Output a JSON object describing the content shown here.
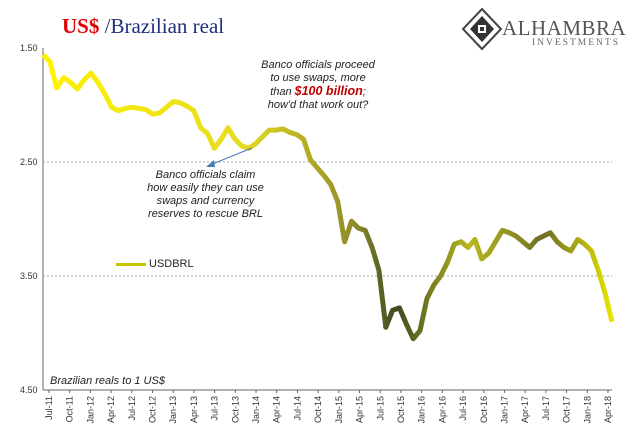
{
  "title": {
    "currency": "US$",
    "rest": " /Brazilian real"
  },
  "logo": {
    "name": "ALHAMBRA",
    "sub": "INVESTMENTS"
  },
  "annotations": {
    "swaps_line1": "Banco officials proceed",
    "swaps_line2": "to use swaps, more",
    "swaps_line3_pre": "than ",
    "swaps_highlight": "$100 billion",
    "swaps_line3_post": ";",
    "swaps_line4": "how'd that work out?",
    "claim_line1": "Banco officials claim",
    "claim_line2": "how easily they can use",
    "claim_line3": "swaps and currency",
    "claim_line4": "reserves to rescue BRL"
  },
  "units_note": "Brazilian reals to 1 US$",
  "chart_data": {
    "type": "line",
    "y_inverted": true,
    "ylim": [
      1.5,
      4.5
    ],
    "yticks": [
      "1.50",
      "2.50",
      "3.50",
      "4.50"
    ],
    "xticks": [
      "Jul-11",
      "Oct-11",
      "Jan-12",
      "Apr-12",
      "Jul-12",
      "Oct-12",
      "Jan-13",
      "Apr-13",
      "Jul-13",
      "Oct-13",
      "Jan-14",
      "Apr-14",
      "Jul-14",
      "Oct-14",
      "Jan-15",
      "Apr-15",
      "Jul-15",
      "Oct-15",
      "Jan-16",
      "Apr-16",
      "Jul-16",
      "Oct-16",
      "Jan-17",
      "Apr-17",
      "Jul-17",
      "Oct-17",
      "Jan-18",
      "Apr-18"
    ],
    "grid": "horizontal dashed at 2.50 and 3.50",
    "legend": "left-middle",
    "series": [
      {
        "name": "USDBRL",
        "x": [
          "2011-07",
          "2011-08",
          "2011-09",
          "2011-10",
          "2011-11",
          "2011-12",
          "2012-01",
          "2012-02",
          "2012-03",
          "2012-04",
          "2012-05",
          "2012-06",
          "2012-07",
          "2012-08",
          "2012-09",
          "2012-10",
          "2012-11",
          "2012-12",
          "2013-01",
          "2013-02",
          "2013-03",
          "2013-04",
          "2013-05",
          "2013-06",
          "2013-07",
          "2013-08",
          "2013-09",
          "2013-10",
          "2013-11",
          "2013-12",
          "2014-01",
          "2014-02",
          "2014-03",
          "2014-04",
          "2014-05",
          "2014-06",
          "2014-07",
          "2014-08",
          "2014-09",
          "2014-10",
          "2014-11",
          "2014-12",
          "2015-01",
          "2015-02",
          "2015-03",
          "2015-04",
          "2015-05",
          "2015-06",
          "2015-07",
          "2015-08",
          "2015-09",
          "2015-10",
          "2015-11",
          "2015-12",
          "2016-01",
          "2016-02",
          "2016-03",
          "2016-04",
          "2016-05",
          "2016-06",
          "2016-07",
          "2016-08",
          "2016-09",
          "2016-10",
          "2016-11",
          "2016-12",
          "2017-01",
          "2017-02",
          "2017-03",
          "2017-04",
          "2017-05",
          "2017-06",
          "2017-07",
          "2017-08",
          "2017-09",
          "2017-10",
          "2017-11",
          "2017-12",
          "2018-01",
          "2018-02",
          "2018-03",
          "2018-04",
          "2018-05",
          "2018-06"
        ],
        "values": [
          1.56,
          1.62,
          1.85,
          1.76,
          1.8,
          1.86,
          1.78,
          1.72,
          1.8,
          1.9,
          2.02,
          2.05,
          2.03,
          2.02,
          2.03,
          2.04,
          2.08,
          2.07,
          2.02,
          1.97,
          1.98,
          2.01,
          2.05,
          2.2,
          2.25,
          2.38,
          2.3,
          2.2,
          2.3,
          2.36,
          2.38,
          2.34,
          2.28,
          2.22,
          2.22,
          2.21,
          2.24,
          2.26,
          2.3,
          2.48,
          2.55,
          2.62,
          2.7,
          2.85,
          3.2,
          3.02,
          3.08,
          3.1,
          3.25,
          3.45,
          3.95,
          3.8,
          3.78,
          3.92,
          4.05,
          3.98,
          3.7,
          3.58,
          3.5,
          3.38,
          3.22,
          3.2,
          3.25,
          3.18,
          3.35,
          3.3,
          3.2,
          3.1,
          3.12,
          3.15,
          3.2,
          3.25,
          3.18,
          3.15,
          3.12,
          3.2,
          3.25,
          3.28,
          3.18,
          3.22,
          3.28,
          3.45,
          3.65,
          3.9
        ]
      }
    ]
  }
}
